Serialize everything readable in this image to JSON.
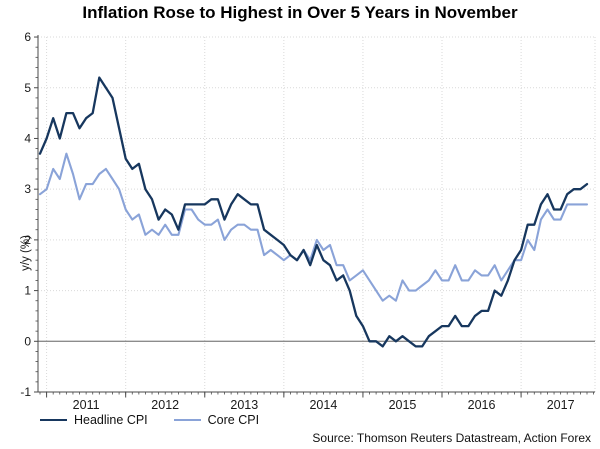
{
  "title": "Inflation Rose to Highest in Over 5 Years in November",
  "source": "Source: Thomson Reuters Datastream, Action Forex",
  "chart_data": {
    "type": "line",
    "title": "Inflation Rose to Highest in Over 5 Years in November",
    "xlabel": "",
    "ylabel": "y/y (%)",
    "ylim": [
      -1,
      6
    ],
    "ytick_labels": [
      "6",
      "5",
      "4",
      "3",
      "2",
      "1",
      "0",
      "-1"
    ],
    "yticks": [
      6,
      5,
      4,
      3,
      2,
      1,
      0,
      -1
    ],
    "x_frequency": "monthly",
    "x_start": "2010-12",
    "x_end": "2017-11",
    "xtick_labels": [
      "2011",
      "2012",
      "2013",
      "2014",
      "2015",
      "2016",
      "2017"
    ],
    "grid": true,
    "zero_line": true,
    "legend_position": "bottom-left",
    "colors": {
      "headline": "#17375E",
      "core": "#8AA3D8",
      "grid": "#D9D9D9",
      "zero_line": "#8C8C8C",
      "axis": "#4A4A4A",
      "text": "#1A1A1A"
    },
    "series": [
      {
        "name": "Headline CPI",
        "color": "#17375E",
        "values": [
          3.7,
          4.0,
          4.4,
          4.0,
          4.5,
          4.5,
          4.2,
          4.4,
          4.5,
          5.2,
          5.0,
          4.8,
          4.2,
          3.6,
          3.4,
          3.5,
          3.0,
          2.8,
          2.4,
          2.6,
          2.5,
          2.2,
          2.7,
          2.7,
          2.7,
          2.7,
          2.8,
          2.8,
          2.4,
          2.7,
          2.9,
          2.8,
          2.7,
          2.7,
          2.2,
          2.1,
          2.0,
          1.9,
          1.7,
          1.6,
          1.8,
          1.5,
          1.9,
          1.6,
          1.5,
          1.2,
          1.3,
          1.0,
          0.5,
          0.3,
          0.0,
          0.0,
          -0.1,
          0.1,
          0.0,
          0.1,
          0.0,
          -0.1,
          -0.1,
          0.1,
          0.2,
          0.3,
          0.3,
          0.5,
          0.3,
          0.3,
          0.5,
          0.6,
          0.6,
          1.0,
          0.9,
          1.2,
          1.6,
          1.8,
          2.3,
          2.3,
          2.7,
          2.9,
          2.6,
          2.6,
          2.9,
          3.0,
          3.0,
          3.1
        ]
      },
      {
        "name": "Core CPI",
        "color": "#8AA3D8",
        "values": [
          2.9,
          3.0,
          3.4,
          3.2,
          3.7,
          3.3,
          2.8,
          3.1,
          3.1,
          3.3,
          3.4,
          3.2,
          3.0,
          2.6,
          2.4,
          2.5,
          2.1,
          2.2,
          2.1,
          2.3,
          2.1,
          2.1,
          2.6,
          2.6,
          2.4,
          2.3,
          2.3,
          2.4,
          2.0,
          2.2,
          2.3,
          2.3,
          2.2,
          2.2,
          1.7,
          1.8,
          1.7,
          1.6,
          1.7,
          1.6,
          1.8,
          1.6,
          2.0,
          1.8,
          1.9,
          1.5,
          1.5,
          1.2,
          1.3,
          1.4,
          1.2,
          1.0,
          0.8,
          0.9,
          0.8,
          1.2,
          1.0,
          1.0,
          1.1,
          1.2,
          1.4,
          1.2,
          1.2,
          1.5,
          1.2,
          1.2,
          1.4,
          1.3,
          1.3,
          1.5,
          1.2,
          1.4,
          1.6,
          1.6,
          2.0,
          1.8,
          2.4,
          2.6,
          2.4,
          2.4,
          2.7,
          2.7,
          2.7,
          2.7
        ]
      }
    ]
  }
}
